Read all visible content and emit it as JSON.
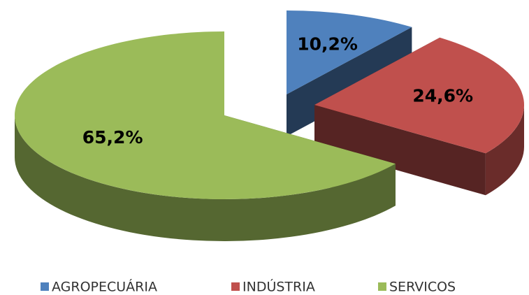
{
  "chart_data": {
    "type": "pie",
    "categories": [
      "AGROPECUÁRIA",
      "INDÚSTRIA",
      "SERVICOS"
    ],
    "values": [
      10.2,
      24.6,
      65.2
    ],
    "value_labels": [
      "10,2%",
      "24,6%",
      "65,2%"
    ],
    "colors": [
      "#4f81bd",
      "#c0504d",
      "#9bbb59"
    ],
    "legend": "bottom"
  }
}
